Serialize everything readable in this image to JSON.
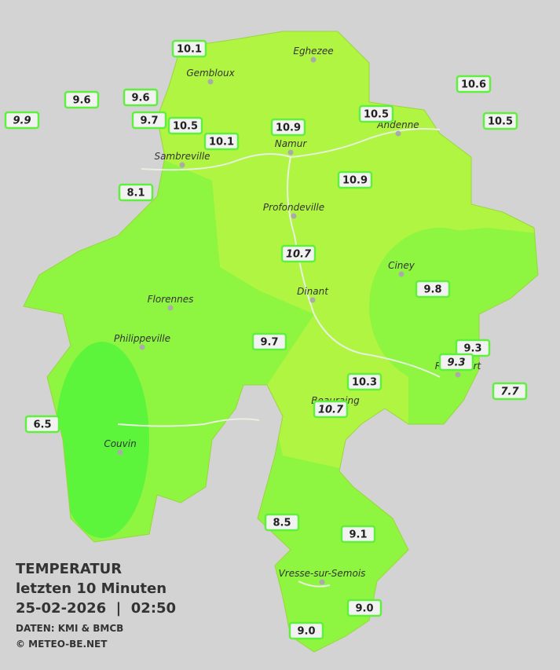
{
  "header": {
    "title": "TEMPERATUR",
    "subtitle": "letzten 10 Minuten",
    "timestamp": "25-02-2026  |  02:50",
    "source": "DATEN: KMI & BMCB",
    "copyright": "© METEO-BE.NET"
  },
  "towns": [
    {
      "label": "Eghezee"
    },
    {
      "label": "Gembloux"
    },
    {
      "label": "Andenne"
    },
    {
      "label": "Namur"
    },
    {
      "label": "Sambreville"
    },
    {
      "label": "Profondeville"
    },
    {
      "label": "Ciney"
    },
    {
      "label": "Dinant"
    },
    {
      "label": "Florennes"
    },
    {
      "label": "Philippeville"
    },
    {
      "label": "Rochefort"
    },
    {
      "label": "Beauraing"
    },
    {
      "label": "Couvin"
    },
    {
      "label": "Vresse-sur-Semois"
    }
  ],
  "stations": [
    {
      "value": "10.1"
    },
    {
      "value": "9.6"
    },
    {
      "value": "9.6"
    },
    {
      "value": "9.9"
    },
    {
      "value": "9.7"
    },
    {
      "value": "10.5"
    },
    {
      "value": "10.1"
    },
    {
      "value": "10.9"
    },
    {
      "value": "10.5"
    },
    {
      "value": "10.6"
    },
    {
      "value": "10.5"
    },
    {
      "value": "8.1"
    },
    {
      "value": "10.9"
    },
    {
      "value": "10.7"
    },
    {
      "value": "9.8"
    },
    {
      "value": "9.7"
    },
    {
      "value": "9.3"
    },
    {
      "value": "9.3"
    },
    {
      "value": "10.3"
    },
    {
      "value": "7.7"
    },
    {
      "value": "10.7"
    },
    {
      "value": "6.5"
    },
    {
      "value": "8.5"
    },
    {
      "value": "9.1"
    },
    {
      "value": "9.0"
    },
    {
      "value": "9.0"
    }
  ]
}
